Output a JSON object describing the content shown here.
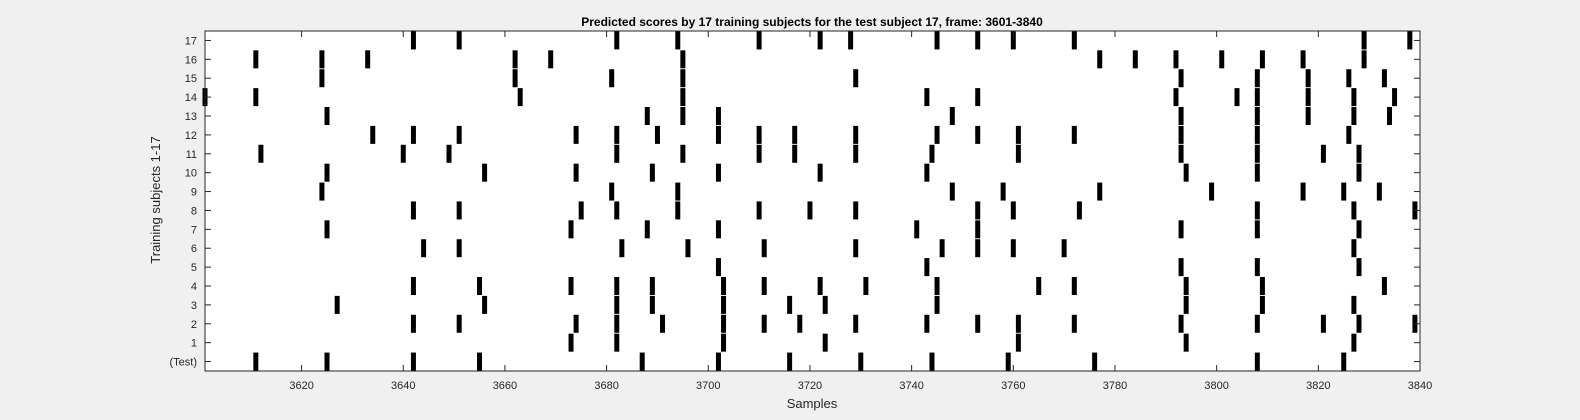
{
  "chart_data": {
    "type": "raster",
    "title": "Predicted scores by 17 training subjects for the test subject 17, frame: 3601-3840",
    "xlabel": "Samples",
    "ylabel": "Training subjects 1-17",
    "xlim": [
      3601,
      3840
    ],
    "xticks": [
      3620,
      3640,
      3660,
      3680,
      3700,
      3720,
      3740,
      3760,
      3780,
      3800,
      3820,
      3840
    ],
    "rows": [
      "(Test)",
      "1",
      "2",
      "3",
      "4",
      "5",
      "6",
      "7",
      "8",
      "9",
      "10",
      "11",
      "12",
      "13",
      "14",
      "15",
      "16",
      "17"
    ],
    "series": [
      {
        "name": "(Test)",
        "x": [
          3611,
          3625,
          3642,
          3655,
          3687,
          3702,
          3716,
          3730,
          3744,
          3759,
          3776,
          3808,
          3825
        ]
      },
      {
        "name": "1",
        "x": [
          3673,
          3682,
          3703,
          3723,
          3761,
          3794,
          3827
        ]
      },
      {
        "name": "2",
        "x": [
          3642,
          3651,
          3674,
          3682,
          3691,
          3703,
          3711,
          3718,
          3729,
          3743,
          3753,
          3761,
          3772,
          3793,
          3808,
          3821,
          3828,
          3839
        ]
      },
      {
        "name": "3",
        "x": [
          3627,
          3656,
          3682,
          3689,
          3703,
          3716,
          3723,
          3745,
          3794,
          3809,
          3827
        ]
      },
      {
        "name": "4",
        "x": [
          3642,
          3655,
          3673,
          3682,
          3689,
          3703,
          3711,
          3722,
          3731,
          3745,
          3765,
          3772,
          3794,
          3809,
          3833
        ]
      },
      {
        "name": "5",
        "x": [
          3702,
          3743,
          3793,
          3808,
          3828
        ]
      },
      {
        "name": "6",
        "x": [
          3644,
          3651,
          3683,
          3696,
          3711,
          3729,
          3746,
          3753,
          3760,
          3770,
          3827
        ]
      },
      {
        "name": "7",
        "x": [
          3625,
          3673,
          3688,
          3702,
          3741,
          3753,
          3793,
          3808,
          3828
        ]
      },
      {
        "name": "8",
        "x": [
          3642,
          3651,
          3675,
          3682,
          3694,
          3710,
          3720,
          3729,
          3753,
          3760,
          3773,
          3808,
          3827,
          3839
        ]
      },
      {
        "name": "9",
        "x": [
          3624,
          3681,
          3694,
          3748,
          3758,
          3777,
          3799,
          3817,
          3825,
          3832
        ]
      },
      {
        "name": "10",
        "x": [
          3625,
          3656,
          3674,
          3689,
          3702,
          3722,
          3743,
          3794,
          3808,
          3828
        ]
      },
      {
        "name": "11",
        "x": [
          3612,
          3640,
          3649,
          3682,
          3695,
          3710,
          3717,
          3729,
          3744,
          3761,
          3793,
          3808,
          3821,
          3828
        ]
      },
      {
        "name": "12",
        "x": [
          3634,
          3642,
          3651,
          3674,
          3682,
          3690,
          3702,
          3710,
          3717,
          3729,
          3745,
          3753,
          3761,
          3772,
          3793,
          3808,
          3826
        ]
      },
      {
        "name": "13",
        "x": [
          3625,
          3688,
          3695,
          3702,
          3748,
          3793,
          3808,
          3818,
          3827,
          3834
        ]
      },
      {
        "name": "14",
        "x": [
          3601,
          3611,
          3663,
          3695,
          3743,
          3753,
          3792,
          3804,
          3808,
          3818,
          3827,
          3835
        ]
      },
      {
        "name": "15",
        "x": [
          3624,
          3662,
          3681,
          3695,
          3729,
          3793,
          3808,
          3818,
          3826,
          3833
        ]
      },
      {
        "name": "16",
        "x": [
          3611,
          3624,
          3633,
          3662,
          3669,
          3695,
          3777,
          3784,
          3792,
          3801,
          3809,
          3817,
          3829
        ]
      },
      {
        "name": "17",
        "x": [
          3642,
          3651,
          3682,
          3694,
          3710,
          3722,
          3728,
          3745,
          3753,
          3760,
          3772,
          3829,
          3838
        ]
      }
    ],
    "color": "#000000",
    "grid": false,
    "legend": "none"
  }
}
